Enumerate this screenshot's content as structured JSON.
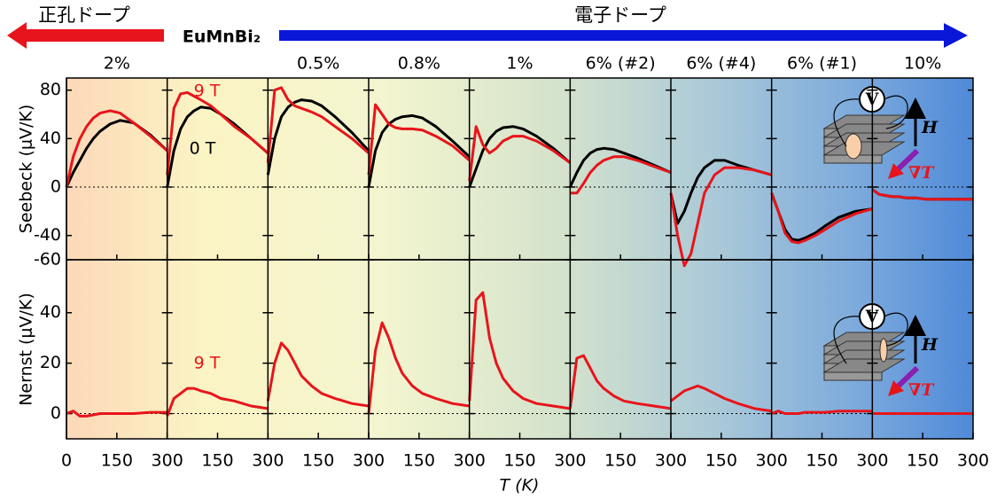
{
  "header": {
    "hole_doping": "正孔ドープ",
    "electron_doping": "電子ドープ",
    "compound": "EuMnBi₂"
  },
  "inset": {
    "voltmeter": "V",
    "field": "H",
    "gradient": "∇T"
  },
  "chart_data": {
    "type": "line",
    "x_label": "T (K)",
    "x": [
      0,
      20,
      40,
      60,
      80,
      100,
      130,
      160,
      200,
      250,
      300
    ],
    "xlim": [
      0,
      300
    ],
    "xticks": [
      0,
      150,
      300
    ],
    "panel_labels": [
      "2%",
      null,
      "0.5%",
      "0.8%",
      "1%",
      "6% (#2)",
      "6% (#4)",
      "6% (#1)",
      "10%"
    ],
    "rows": [
      {
        "y_label": "Seebeck (μV/K)",
        "ylim": [
          -60,
          90
        ],
        "yticks": [
          -60,
          -40,
          0,
          40,
          80
        ],
        "series": [
          {
            "name": "0 T",
            "color": "#000000",
            "panels": [
              [
                0,
                12,
                22,
                32,
                40,
                46,
                52,
                55,
                53,
                43,
                30
              ],
              [
                0,
                30,
                48,
                58,
                63,
                66,
                65,
                60,
                52,
                40,
                28
              ],
              [
                10,
                40,
                58,
                66,
                70,
                72,
                71,
                67,
                58,
                45,
                30
              ],
              [
                0,
                30,
                45,
                52,
                56,
                58,
                59,
                57,
                50,
                38,
                25
              ],
              [
                0,
                15,
                30,
                40,
                46,
                49,
                50,
                48,
                42,
                32,
                20
              ],
              [
                0,
                12,
                22,
                28,
                31,
                32,
                31,
                28,
                24,
                18,
                12
              ],
              [
                -5,
                -30,
                -20,
                -5,
                8,
                16,
                22,
                22,
                18,
                14,
                10
              ],
              [
                -5,
                -20,
                -35,
                -43,
                -44,
                -42,
                -38,
                -32,
                -25,
                -20,
                -18
              ],
              [
                -2,
                -6,
                -7,
                -8,
                -8,
                -9,
                -9,
                -10,
                -10,
                -10,
                -10
              ]
            ]
          },
          {
            "name": "9 T",
            "color": "#e8141b",
            "panels": [
              [
                0,
                25,
                40,
                50,
                57,
                61,
                63,
                61,
                53,
                42,
                30
              ],
              [
                10,
                65,
                77,
                78,
                75,
                72,
                67,
                60,
                50,
                40,
                28
              ],
              [
                20,
                80,
                82,
                72,
                67,
                65,
                62,
                58,
                50,
                40,
                28
              ],
              [
                10,
                68,
                60,
                52,
                49,
                48,
                48,
                47,
                42,
                34,
                22
              ],
              [
                5,
                50,
                35,
                28,
                32,
                38,
                42,
                42,
                38,
                30,
                20
              ],
              [
                -5,
                -5,
                3,
                12,
                18,
                22,
                25,
                25,
                22,
                17,
                12
              ],
              [
                -5,
                -40,
                -65,
                -55,
                -30,
                -5,
                10,
                16,
                16,
                14,
                10
              ],
              [
                -5,
                -20,
                -38,
                -45,
                -46,
                -44,
                -40,
                -35,
                -28,
                -22,
                -18
              ],
              [
                -2,
                -6,
                -7,
                -8,
                -8,
                -9,
                -9,
                -10,
                -10,
                -10,
                -10
              ]
            ]
          }
        ]
      },
      {
        "y_label": "Nernst (μV/K)",
        "ylim": [
          -10,
          61
        ],
        "yticks": [
          0,
          20,
          40
        ],
        "series": [
          {
            "name": "9 T",
            "color": "#e8141b",
            "panels": [
              [
                0,
                1,
                -1,
                -1,
                -0.5,
                0,
                0,
                0,
                0,
                0.5,
                0.5
              ],
              [
                -1,
                6,
                8,
                10,
                10,
                9,
                8,
                6,
                5,
                3,
                2
              ],
              [
                5,
                20,
                28,
                25,
                20,
                15,
                11,
                8,
                6,
                4,
                3
              ],
              [
                0,
                25,
                36,
                30,
                22,
                16,
                11,
                8,
                6,
                4,
                3
              ],
              [
                5,
                45,
                48,
                30,
                20,
                14,
                9,
                6,
                4,
                3,
                2
              ],
              [
                2,
                22,
                23,
                18,
                13,
                10,
                7,
                5,
                4,
                3,
                2
              ],
              [
                5,
                7,
                9,
                10,
                11,
                10,
                8,
                6,
                4,
                2,
                1
              ],
              [
                0,
                1,
                0,
                0,
                0,
                0.5,
                0.5,
                0.5,
                1,
                1,
                1
              ],
              [
                0,
                0,
                0,
                0,
                0,
                0,
                0,
                0,
                0,
                0,
                0
              ]
            ]
          }
        ]
      }
    ]
  }
}
